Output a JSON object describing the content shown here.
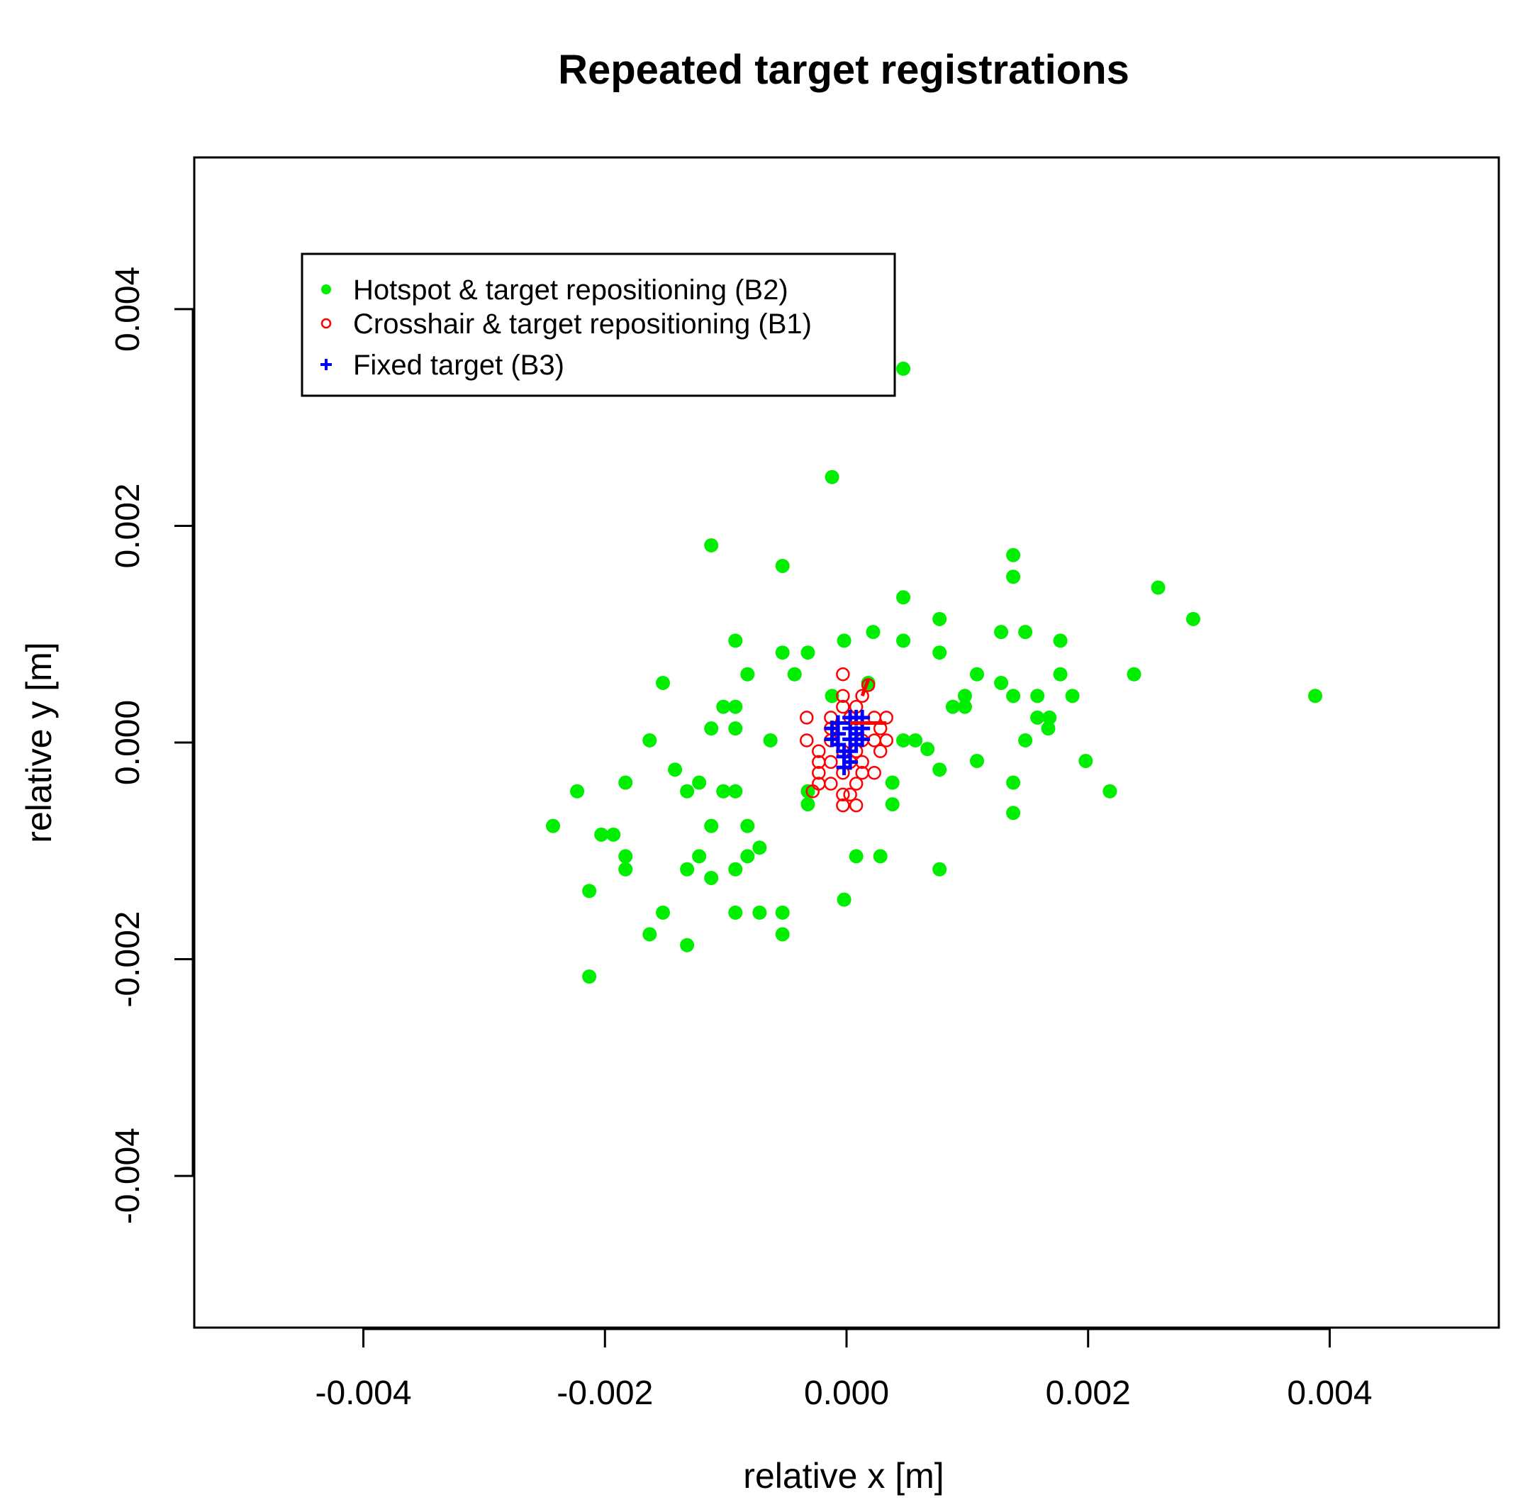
{
  "chart_data": {
    "type": "scatter",
    "title": "Repeated target registrations",
    "xlabel": "relative x [m]",
    "ylabel": "relative y [m]",
    "xlim": [
      -0.0054,
      0.0054
    ],
    "ylim": [
      -0.0054,
      0.0054
    ],
    "xticks": [
      -0.004,
      -0.002,
      0.0,
      0.002,
      0.004
    ],
    "yticks": [
      -0.004,
      -0.002,
      0.0,
      0.002,
      0.004
    ],
    "xtick_labels": [
      "-0.004",
      "-0.002",
      "0.000",
      "0.002",
      "0.004"
    ],
    "ytick_labels": [
      "-0.004",
      "-0.002",
      "0.000",
      "0.002",
      "0.004"
    ],
    "grid": false,
    "legend_position": "top-left",
    "series": [
      {
        "name": "Hotspot & target repositioning (B2)",
        "marker": "filled-circle",
        "color": "#00ee00",
        "points": [
          [
            0.00047,
            0.00345
          ],
          [
            -0.00012,
            0.00245
          ],
          [
            -0.00112,
            0.00182
          ],
          [
            -0.00053,
            0.00163
          ],
          [
            0.00138,
            0.00173
          ],
          [
            0.00138,
            0.00153
          ],
          [
            0.00258,
            0.00143
          ],
          [
            0.00287,
            0.00114
          ],
          [
            0.00047,
            0.00134
          ],
          [
            0.00077,
            0.00114
          ],
          [
            0.00022,
            0.00102
          ],
          [
            0.00128,
            0.00102
          ],
          [
            0.00148,
            0.00102
          ],
          [
            -0.00092,
            0.00094
          ],
          [
            -2e-05,
            0.00094
          ],
          [
            0.00047,
            0.00094
          ],
          [
            0.00177,
            0.00094
          ],
          [
            -0.00053,
            0.00083
          ],
          [
            -0.00032,
            0.00083
          ],
          [
            0.00077,
            0.00083
          ],
          [
            -0.00082,
            0.00063
          ],
          [
            -0.00043,
            0.00063
          ],
          [
            0.00108,
            0.00063
          ],
          [
            0.00177,
            0.00063
          ],
          [
            0.00238,
            0.00063
          ],
          [
            -0.00152,
            0.00055
          ],
          [
            0.00018,
            0.00055
          ],
          [
            0.00128,
            0.00055
          ],
          [
            0.00098,
            0.00043
          ],
          [
            0.00138,
            0.00043
          ],
          [
            0.00158,
            0.00043
          ],
          [
            0.00187,
            0.00043
          ],
          [
            0.00388,
            0.00043
          ],
          [
            -0.00012,
            0.00043
          ],
          [
            -0.00102,
            0.00033
          ],
          [
            -0.00092,
            0.00033
          ],
          [
            0.00088,
            0.00033
          ],
          [
            0.00098,
            0.00033
          ],
          [
            0.00158,
            0.00023
          ],
          [
            0.00168,
            0.00023
          ],
          [
            -0.00112,
            0.00013
          ],
          [
            -0.00092,
            0.00013
          ],
          [
            0.00167,
            0.00013
          ],
          [
            -0.00163,
            2e-05
          ],
          [
            -0.00063,
            2e-05
          ],
          [
            0.00047,
            2e-05
          ],
          [
            0.00057,
            2e-05
          ],
          [
            0.00148,
            2e-05
          ],
          [
            0.00067,
            -6e-05
          ],
          [
            0.00108,
            -0.00017
          ],
          [
            0.00198,
            -0.00017
          ],
          [
            -0.00142,
            -0.00025
          ],
          [
            0.00077,
            -0.00025
          ],
          [
            -0.00183,
            -0.00037
          ],
          [
            -0.00122,
            -0.00037
          ],
          [
            0.00038,
            -0.00037
          ],
          [
            0.00138,
            -0.00037
          ],
          [
            -0.00223,
            -0.00045
          ],
          [
            -0.00132,
            -0.00045
          ],
          [
            -0.00102,
            -0.00045
          ],
          [
            -0.00092,
            -0.00045
          ],
          [
            -0.00032,
            -0.00045
          ],
          [
            0.00218,
            -0.00045
          ],
          [
            -0.00032,
            -0.00057
          ],
          [
            0.00038,
            -0.00057
          ],
          [
            0.00138,
            -0.00065
          ],
          [
            -0.00243,
            -0.00077
          ],
          [
            -0.00112,
            -0.00077
          ],
          [
            -0.00082,
            -0.00077
          ],
          [
            -0.00203,
            -0.00085
          ],
          [
            -0.00193,
            -0.00085
          ],
          [
            -0.00072,
            -0.00097
          ],
          [
            -0.00183,
            -0.00105
          ],
          [
            -0.00122,
            -0.00105
          ],
          [
            -0.00082,
            -0.00105
          ],
          [
            8e-05,
            -0.00105
          ],
          [
            0.00028,
            -0.00105
          ],
          [
            -0.00183,
            -0.00117
          ],
          [
            -0.00132,
            -0.00117
          ],
          [
            -0.00092,
            -0.00117
          ],
          [
            0.00077,
            -0.00117
          ],
          [
            -0.00112,
            -0.00125
          ],
          [
            -0.00213,
            -0.00137
          ],
          [
            -2e-05,
            -0.00145
          ],
          [
            -0.00152,
            -0.00157
          ],
          [
            -0.00092,
            -0.00157
          ],
          [
            -0.00072,
            -0.00157
          ],
          [
            -0.00053,
            -0.00157
          ],
          [
            -0.00163,
            -0.00177
          ],
          [
            -0.00053,
            -0.00177
          ],
          [
            -0.00132,
            -0.00187
          ],
          [
            -0.00213,
            -0.00216
          ]
        ]
      },
      {
        "name": "Crosshair & target repositioning (B1)",
        "marker": "open-circle",
        "color": "#ff0000",
        "points": [
          [
            -3e-05,
            0.00063
          ],
          [
            0.00018,
            0.00053
          ],
          [
            -3e-05,
            0.00043
          ],
          [
            0.00013,
            0.00043
          ],
          [
            -3e-05,
            0.00033
          ],
          [
            8e-05,
            0.00033
          ],
          [
            -0.00033,
            0.00023
          ],
          [
            -0.00013,
            0.00023
          ],
          [
            3e-05,
            0.00023
          ],
          [
            0.00023,
            0.00023
          ],
          [
            0.00033,
            0.00023
          ],
          [
            -0.00013,
            0.00013
          ],
          [
            8e-05,
            0.00013
          ],
          [
            0.00028,
            0.00013
          ],
          [
            -0.00033,
            2e-05
          ],
          [
            -0.00013,
            2e-05
          ],
          [
            0.00013,
            2e-05
          ],
          [
            0.00023,
            2e-05
          ],
          [
            0.00033,
            2e-05
          ],
          [
            -0.00023,
            -8e-05
          ],
          [
            -3e-05,
            -8e-05
          ],
          [
            8e-05,
            -8e-05
          ],
          [
            0.00028,
            -8e-05
          ],
          [
            -0.00023,
            -0.00018
          ],
          [
            -0.00013,
            -0.00018
          ],
          [
            3e-05,
            -0.00018
          ],
          [
            0.00013,
            -0.00018
          ],
          [
            -0.00023,
            -0.00028
          ],
          [
            -3e-05,
            -0.00028
          ],
          [
            0.00013,
            -0.00028
          ],
          [
            0.00023,
            -0.00028
          ],
          [
            -0.00023,
            -0.00038
          ],
          [
            -0.00013,
            -0.00038
          ],
          [
            8e-05,
            -0.00038
          ],
          [
            -0.00028,
            -0.00045
          ],
          [
            -3e-05,
            -0.00048
          ],
          [
            3e-05,
            -0.00048
          ],
          [
            -3e-05,
            -0.00058
          ],
          [
            8e-05,
            -0.00058
          ]
        ]
      },
      {
        "name": "Fixed target (B3)",
        "marker": "plus",
        "color": "#0000ff",
        "points": [
          [
            3e-05,
            0.00023
          ],
          [
            8e-05,
            0.00023
          ],
          [
            0.00013,
            0.00023
          ],
          [
            -7e-05,
            0.00018
          ],
          [
            3e-05,
            0.00018
          ],
          [
            -0.00012,
            0.00013
          ],
          [
            3e-05,
            0.00013
          ],
          [
            0.00013,
            0.00013
          ],
          [
            -7e-05,
            8e-05
          ],
          [
            8e-05,
            8e-05
          ],
          [
            -0.00012,
            3e-05
          ],
          [
            3e-05,
            3e-05
          ],
          [
            0.00013,
            3e-05
          ],
          [
            -7e-05,
            -2e-05
          ],
          [
            8e-05,
            -2e-05
          ],
          [
            -2e-05,
            -8e-05
          ],
          [
            3e-05,
            -8e-05
          ],
          [
            -2e-05,
            -0.00013
          ],
          [
            3e-05,
            -0.00018
          ],
          [
            -2e-05,
            -0.00023
          ]
        ]
      }
    ],
    "extra_marks": [
      {
        "type": "segment",
        "color": "#ff0000",
        "from": [
          3e-05,
          0.00018
        ],
        "to": [
          0.00033,
          0.00018
        ]
      },
      {
        "type": "segment",
        "color": "#ff0000",
        "from": [
          0.00013,
          0.00043
        ],
        "to": [
          0.00018,
          0.00058
        ]
      }
    ]
  }
}
